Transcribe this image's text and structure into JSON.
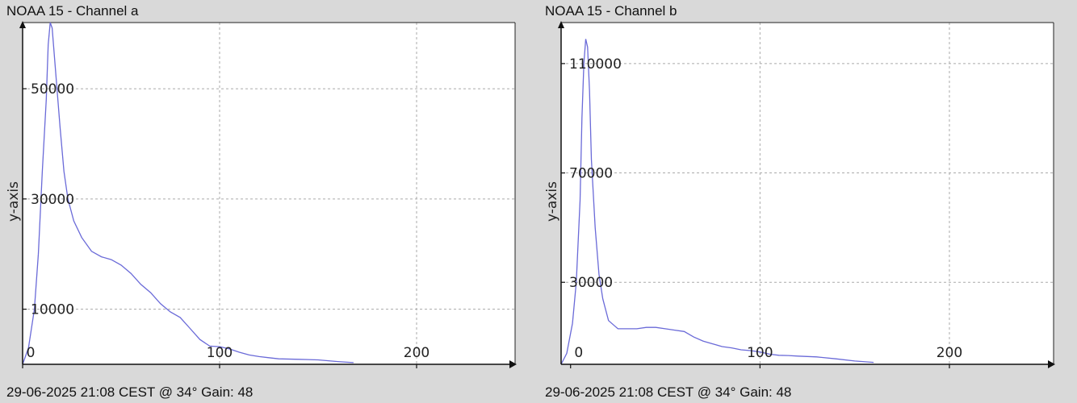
{
  "chart_data": [
    {
      "type": "line",
      "title": "NOAA 15 - Channel a",
      "footer": "29-06-2025 21:08 CEST @ 34° Gain: 48",
      "xlabel": "",
      "ylabel": "y-axis",
      "xlim": [
        0,
        250
      ],
      "ylim": [
        0,
        62000
      ],
      "xticks": [
        0,
        100,
        200
      ],
      "xtick_labels": [
        "0",
        "100",
        "200"
      ],
      "yticks": [
        10000,
        30000,
        50000
      ],
      "ytick_labels": [
        "10000",
        "30000",
        "50000"
      ],
      "grid": true,
      "line_color": "#6a6ad8",
      "series": [
        {
          "x": [
            0,
            3,
            6,
            8,
            10,
            12,
            13,
            14,
            15,
            17,
            19,
            21,
            23,
            26,
            30,
            35,
            40,
            45,
            50,
            55,
            60,
            65,
            70,
            75,
            80,
            85,
            90,
            95,
            100,
            105,
            110,
            115,
            120,
            125,
            130,
            140,
            150,
            160,
            168
          ],
          "y": [
            0,
            3000,
            10000,
            20000,
            35000,
            48000,
            58000,
            62000,
            61000,
            52000,
            43000,
            35000,
            30000,
            26000,
            23000,
            20500,
            19500,
            19000,
            18000,
            16500,
            14500,
            13000,
            11000,
            9500,
            8500,
            6500,
            4500,
            3300,
            3200,
            2800,
            2200,
            1700,
            1400,
            1200,
            1000,
            900,
            800,
            500,
            300
          ]
        }
      ]
    },
    {
      "type": "line",
      "title": "NOAA 15 - Channel b",
      "footer": "29-06-2025 21:08 CEST @ 34° Gain: 48",
      "xlabel": "",
      "ylabel": "y-axis",
      "xlim": [
        -5,
        255
      ],
      "ylim": [
        0,
        125000
      ],
      "xticks": [
        0,
        100,
        200
      ],
      "xtick_labels": [
        "0",
        "100",
        "200"
      ],
      "yticks": [
        30000,
        70000,
        110000
      ],
      "ytick_labels": [
        "30000",
        "70000",
        "110000"
      ],
      "grid": true,
      "line_color": "#6a6ad8",
      "series": [
        {
          "x": [
            -5,
            -2,
            1,
            3,
            5,
            6,
            7,
            8,
            9,
            10,
            11,
            13,
            15,
            17,
            20,
            25,
            30,
            35,
            40,
            45,
            50,
            55,
            60,
            65,
            70,
            75,
            80,
            85,
            90,
            95,
            100,
            105,
            110,
            115,
            120,
            130,
            140,
            150,
            160
          ],
          "y": [
            0,
            4000,
            15000,
            30000,
            60000,
            90000,
            110000,
            119000,
            116000,
            100000,
            75000,
            50000,
            33000,
            24000,
            16000,
            13000,
            13000,
            13000,
            13500,
            13500,
            13000,
            12500,
            12000,
            10000,
            8500,
            7500,
            6500,
            6000,
            5300,
            5000,
            4500,
            3700,
            3300,
            3200,
            3000,
            2700,
            2000,
            1200,
            700
          ]
        }
      ]
    }
  ]
}
